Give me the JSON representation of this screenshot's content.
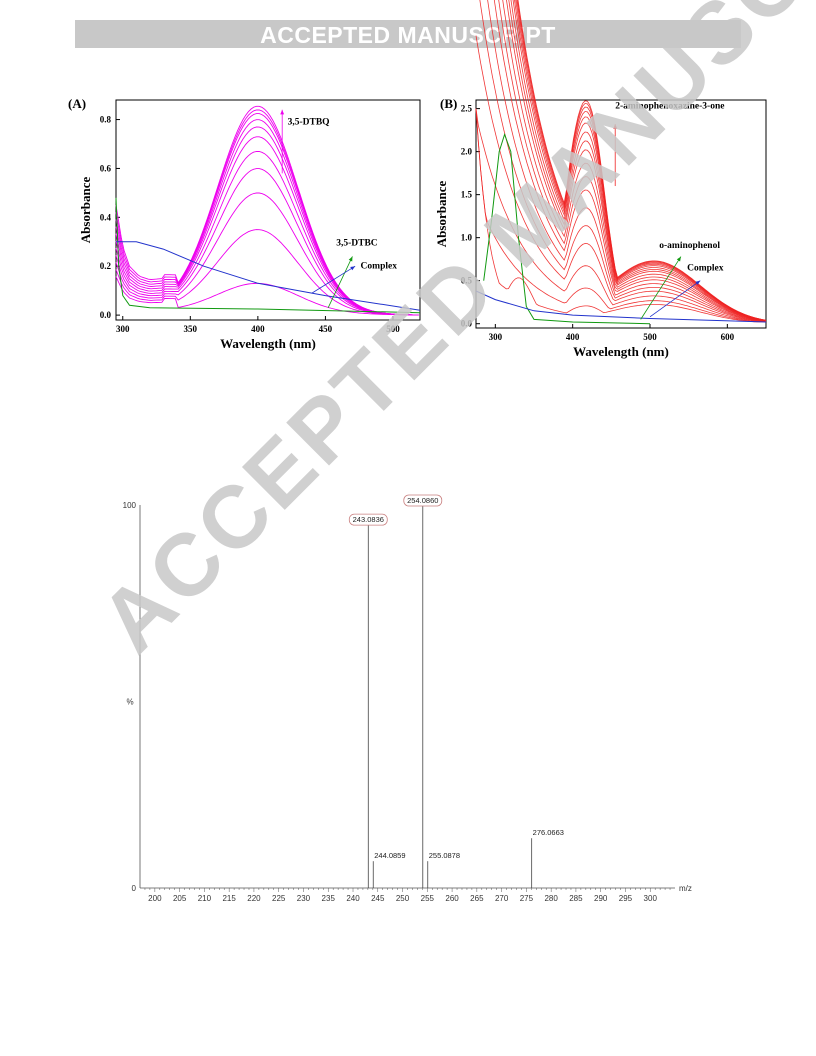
{
  "header": {
    "banner": "ACCEPTED MANUSCRIPT"
  },
  "watermark": "ACCEPTED MANUSCRIPT",
  "colors": {
    "magenta": "#ee00ee",
    "red": "#ee2222",
    "green": "#119911",
    "blue": "#2233cc",
    "banner_bg": "#c8c8c8"
  },
  "chart_data": [
    {
      "panel": "(A)",
      "type": "line",
      "xlabel": "Wavelength (nm)",
      "ylabel": "Absorbance",
      "xlim": [
        295,
        520
      ],
      "ylim": [
        -0.02,
        0.88
      ],
      "xticks": [
        300,
        350,
        400,
        450,
        500
      ],
      "yticks": [
        0.0,
        0.2,
        0.4,
        0.6,
        0.8
      ],
      "annotations": [
        "3,5-DTBQ",
        "3,5-DTBC",
        "Complex"
      ],
      "series": [
        {
          "name": "3,5-DTBQ",
          "color": "#ee00ee",
          "peak_x": 400,
          "peaks": [
            0.12,
            0.34,
            0.49,
            0.59,
            0.66,
            0.72,
            0.76,
            0.79,
            0.815,
            0.83,
            0.845
          ]
        },
        {
          "name": "3,5-DTBC",
          "color": "#119911",
          "points": [
            [
              295,
              0.48
            ],
            [
              297,
              0.2
            ],
            [
              300,
              0.08
            ],
            [
              305,
              0.04
            ],
            [
              320,
              0.03
            ],
            [
              400,
              0.025
            ],
            [
              520,
              0.01
            ]
          ]
        },
        {
          "name": "Complex",
          "color": "#2233cc",
          "points": [
            [
              295,
              0.3
            ],
            [
              310,
              0.3
            ],
            [
              330,
              0.27
            ],
            [
              360,
              0.2
            ],
            [
              400,
              0.13
            ],
            [
              450,
              0.08
            ],
            [
              520,
              0.02
            ]
          ]
        }
      ]
    },
    {
      "panel": "(B)",
      "type": "line",
      "xlabel": "Wavelength (nm)",
      "ylabel": "Absorbance",
      "xlim": [
        275,
        650
      ],
      "ylim": [
        -0.05,
        2.6
      ],
      "xticks": [
        300,
        400,
        500,
        600
      ],
      "yticks": [
        0.0,
        0.5,
        1.0,
        1.5,
        2.0,
        2.5
      ],
      "annotations": [
        "2-aminophenoxazine-3-one",
        "o-aminophenol",
        "Complex"
      ],
      "series": [
        {
          "name": "2-aminophenoxazine-3-one",
          "color": "#ee2222",
          "peak_x": 420,
          "peaks": [
            0.2,
            0.4,
            0.65,
            0.9,
            1.1,
            1.3,
            1.5,
            1.65,
            1.8,
            1.95,
            2.05,
            2.15,
            2.25,
            2.32,
            2.38,
            2.43,
            2.47,
            2.5
          ]
        },
        {
          "name": "o-aminophenol",
          "color": "#119911",
          "points": [
            [
              285,
              0.5
            ],
            [
              295,
              1.2
            ],
            [
              305,
              2.0
            ],
            [
              312,
              2.2
            ],
            [
              320,
              2.0
            ],
            [
              330,
              1.0
            ],
            [
              340,
              0.2
            ],
            [
              350,
              0.05
            ],
            [
              400,
              0.02
            ],
            [
              500,
              0.0
            ]
          ]
        },
        {
          "name": "Complex",
          "color": "#2233cc",
          "points": [
            [
              275,
              0.38
            ],
            [
              300,
              0.28
            ],
            [
              350,
              0.15
            ],
            [
              400,
              0.1
            ],
            [
              500,
              0.06
            ],
            [
              650,
              0.02
            ]
          ]
        }
      ]
    },
    {
      "panel": "MS",
      "type": "bar",
      "xlabel": "m/z",
      "ylabel": "%",
      "xlim": [
        197,
        305
      ],
      "ylim": [
        0,
        100
      ],
      "xticks": [
        200,
        205,
        210,
        215,
        220,
        225,
        230,
        235,
        240,
        245,
        250,
        255,
        260,
        265,
        270,
        275,
        280,
        285,
        290,
        295,
        300
      ],
      "ytick_labels": [
        "0",
        "100"
      ],
      "peaks": [
        {
          "mz": 243.0836,
          "label": "243.0836",
          "intensity": 95,
          "boxed": true
        },
        {
          "mz": 244.0859,
          "label": "244.0859",
          "intensity": 7,
          "boxed": false
        },
        {
          "mz": 254.086,
          "label": "254.0860",
          "intensity": 100,
          "boxed": true
        },
        {
          "mz": 255.0878,
          "label": "255.0878",
          "intensity": 7,
          "boxed": false
        },
        {
          "mz": 276.0663,
          "label": "276.0663",
          "intensity": 13,
          "boxed": false
        }
      ]
    }
  ]
}
